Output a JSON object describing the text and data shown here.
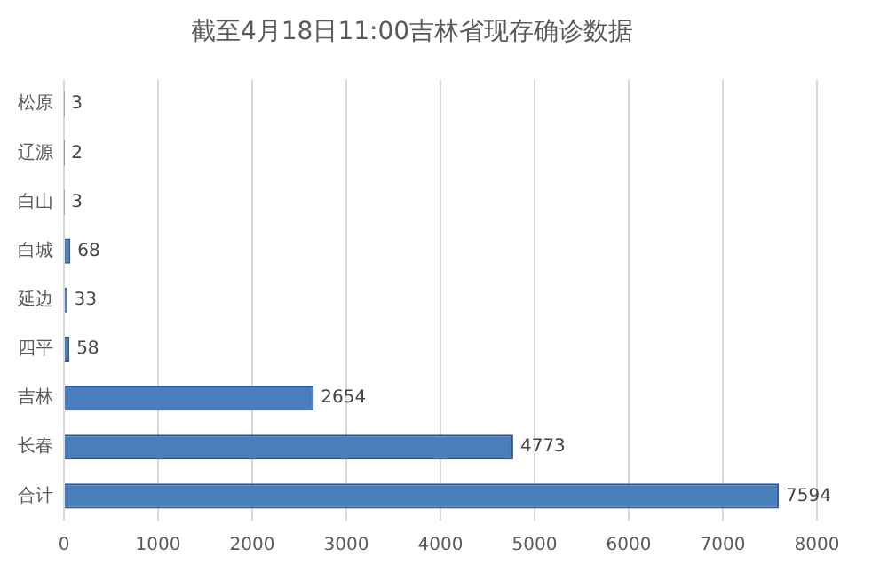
{
  "chart_data": {
    "type": "bar",
    "orientation": "horizontal",
    "title": "截至4月18日11:00吉林省现存确诊数据",
    "categories": [
      "松原",
      "辽源",
      "白山",
      "白城",
      "延边",
      "四平",
      "吉林",
      "长春",
      "合计"
    ],
    "values": [
      3,
      2,
      3,
      68,
      33,
      58,
      2654,
      4773,
      7594
    ],
    "color": "#4a7ebb",
    "xlim": [
      0,
      8000
    ],
    "xticks": [
      0,
      1000,
      2000,
      3000,
      4000,
      5000,
      6000,
      7000,
      8000
    ],
    "grid": "x",
    "data_labels": true
  }
}
